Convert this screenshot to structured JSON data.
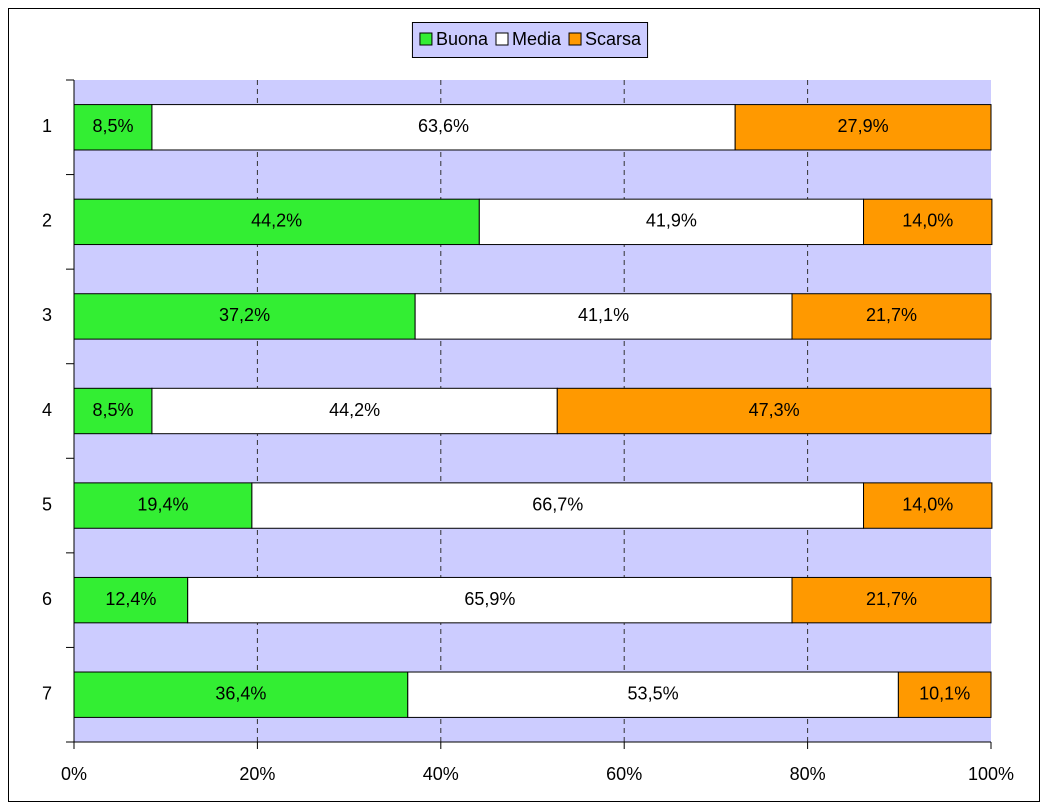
{
  "chart_data": {
    "type": "stacked-bar-horizontal",
    "categories": [
      "1",
      "2",
      "3",
      "4",
      "5",
      "6",
      "7"
    ],
    "series": [
      {
        "name": "Buona",
        "color": "#33ee33",
        "values": [
          8.5,
          44.2,
          37.2,
          8.5,
          19.4,
          12.4,
          36.4
        ],
        "value_labels": [
          "8,5%",
          "44,2%",
          "37,2%",
          "8,5%",
          "19,4%",
          "12,4%",
          "36,4%"
        ]
      },
      {
        "name": "Media",
        "color": "#ffffff",
        "values": [
          63.6,
          41.9,
          41.1,
          44.2,
          66.7,
          65.9,
          53.5
        ],
        "value_labels": [
          "63,6%",
          "41,9%",
          "41,1%",
          "44,2%",
          "66,7%",
          "65,9%",
          "53,5%"
        ]
      },
      {
        "name": "Scarsa",
        "color": "#ff9900",
        "values": [
          27.9,
          14.0,
          21.7,
          47.3,
          14.0,
          21.7,
          10.1
        ],
        "value_labels": [
          "27,9%",
          "14,0%",
          "21,7%",
          "47,3%",
          "14,0%",
          "21,7%",
          "10,1%"
        ]
      }
    ],
    "xlim": [
      0,
      100
    ],
    "xticks": [
      {
        "value": 0,
        "label": "0%"
      },
      {
        "value": 20,
        "label": "20%"
      },
      {
        "value": 40,
        "label": "40%"
      },
      {
        "value": 60,
        "label": "60%"
      },
      {
        "value": 80,
        "label": "80%"
      },
      {
        "value": 100,
        "label": "100%"
      }
    ],
    "grid": true,
    "plot_background": "#ccccff",
    "legend": "top"
  }
}
